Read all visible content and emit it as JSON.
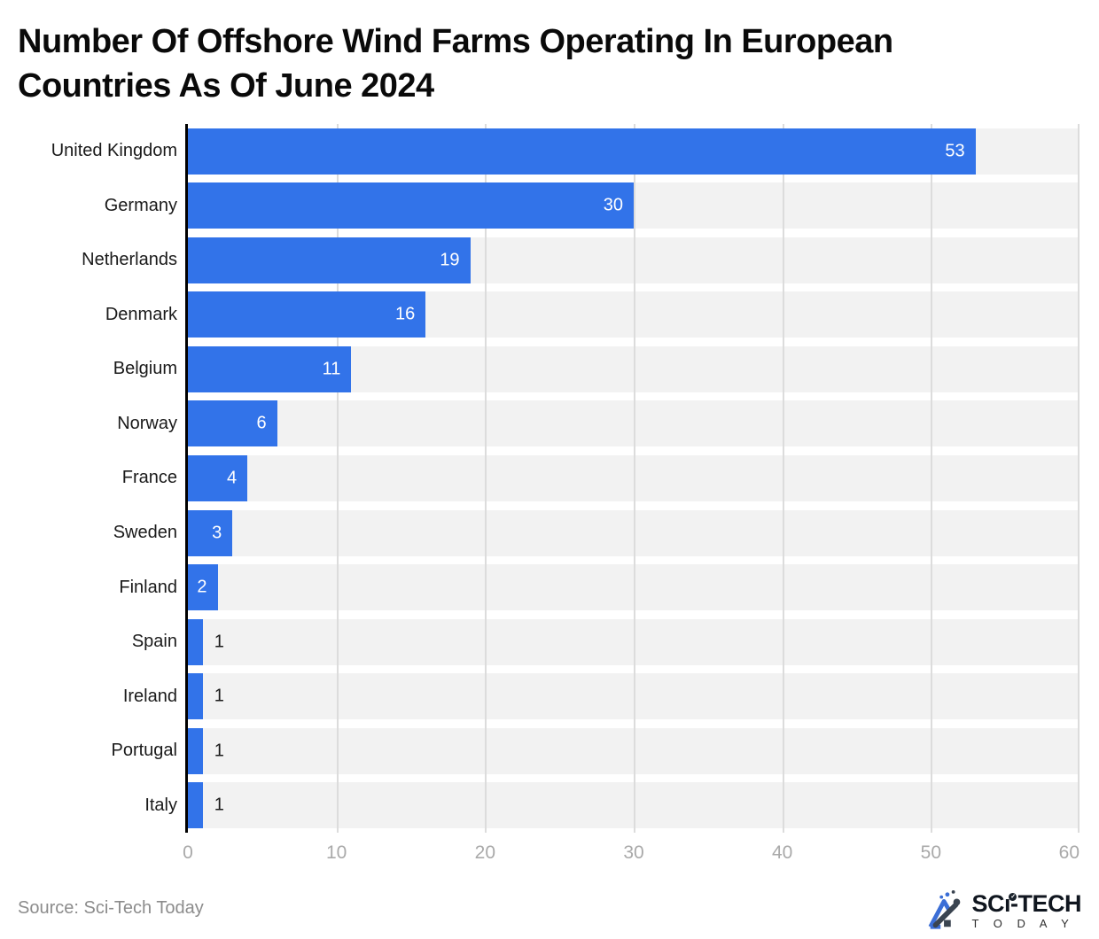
{
  "title_line1": "Number Of Offshore Wind Farms Operating In European",
  "title_line2": "Countries As Of June 2024",
  "source_text": "Source: Sci-Tech Today",
  "logo": {
    "line1_pre": "SC",
    "line1_i": "ı",
    "line1_post": "-TECH",
    "check": "✓",
    "line2": "T O D A Y"
  },
  "chart_data": {
    "type": "bar",
    "orientation": "horizontal",
    "title": "Number Of Offshore Wind Farms Operating In European Countries As Of June 2024",
    "categories": [
      "United Kingdom",
      "Germany",
      "Netherlands",
      "Denmark",
      "Belgium",
      "Norway",
      "France",
      "Sweden",
      "Finland",
      "Spain",
      "Ireland",
      "Portugal",
      "Italy"
    ],
    "values": [
      53,
      30,
      19,
      16,
      11,
      6,
      4,
      3,
      2,
      1,
      1,
      1,
      1
    ],
    "xlabel": "",
    "ylabel": "",
    "xlim": [
      0,
      60
    ],
    "xticks": [
      0,
      10,
      20,
      30,
      40,
      50,
      60
    ],
    "grid": true,
    "legend": "none",
    "colors": {
      "bar": "#3273e9",
      "track": "#f2f2f2",
      "gridline": "#dcdcdc",
      "axis_line": "#000000",
      "label_inside": "#ffffff",
      "label_outside": "#1a1a1a",
      "tick_label": "#a9a9a9"
    }
  }
}
